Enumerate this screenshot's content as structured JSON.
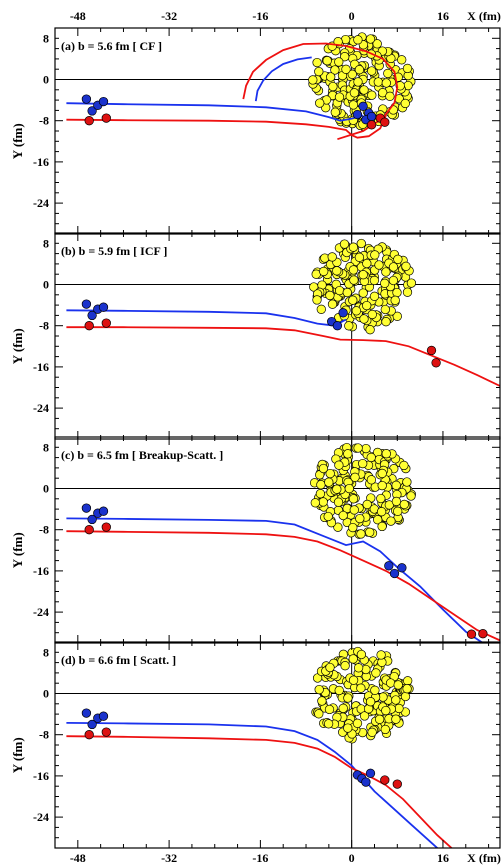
{
  "chart_data": {
    "type": "scatter",
    "xlim": [
      -52,
      26
    ],
    "ylim": [
      -30,
      10
    ],
    "x_ticks_labeled": [
      -48,
      -32,
      -16,
      0,
      16
    ],
    "x_unit_label": "X (fm)",
    "y_ticks_labeled": [
      8,
      0,
      -8,
      -16,
      -24
    ],
    "ylabel": "Y (fm)",
    "colors": {
      "target_fill": "#ffff33",
      "projectile_blue": "#1a32cc",
      "projectile_red": "#dd1111",
      "trajectory_blue": "#1a32ee",
      "trajectory_red": "#ee1111"
    },
    "panels": [
      {
        "label": "(a) b = 5.6 fm  [ CF ]",
        "blue_trajectory": {
          "x": [
            -50,
            -40,
            -25,
            -15,
            -8,
            -4,
            -2,
            0,
            2
          ],
          "y": [
            -4.6,
            -4.8,
            -5.0,
            -5.4,
            -6.2,
            -7.3,
            -8.0,
            -7.6,
            -7.0
          ]
        },
        "blue_arc": {
          "x": [
            -16.8,
            -16.5,
            -15.5,
            -14,
            -12,
            -9.5,
            -7
          ],
          "y": [
            -4.2,
            -2.2,
            -0.2,
            1.6,
            3.0,
            3.9,
            4.3
          ]
        },
        "red_trajectory": {
          "x": [
            -50,
            -40,
            -25,
            -15,
            -8,
            -4,
            -1,
            0,
            1,
            3,
            5,
            6
          ],
          "y": [
            -7.8,
            -7.9,
            -8.0,
            -8.2,
            -8.7,
            -9.2,
            -9.8,
            -10.8,
            -11.3,
            -11.0,
            -9.5,
            -7.0
          ]
        },
        "red_arc": {
          "x": [
            -19,
            -18.5,
            -17.3,
            -15,
            -12,
            -8.5,
            -4.5,
            -1,
            2.5,
            5.5,
            7.5,
            8,
            7.5,
            5.5,
            2,
            -2.5
          ],
          "y": [
            -3.8,
            -1.2,
            1.5,
            3.8,
            5.7,
            6.9,
            7.0,
            6.5,
            5.5,
            4.0,
            1.5,
            -1.5,
            -4.5,
            -7.5,
            -10.0,
            -11.6
          ]
        },
        "blue_particles": {
          "x": [
            -46.5,
            -45.5,
            -44.5,
            -43.5,
            2.0,
            3.0,
            1.0,
            2.5,
            3.5
          ],
          "y": [
            -3.8,
            -6.1,
            -5.0,
            -4.3,
            -5.2,
            -6.5,
            -6.8,
            -7.8,
            -7.2
          ]
        },
        "red_particles": {
          "x": [
            -46,
            -43,
            5.0,
            3.5,
            5.8
          ],
          "y": [
            -8.0,
            -7.5,
            -7.5,
            -8.8,
            -8.3
          ]
        },
        "target": {
          "cx": 1.8,
          "cy": -0.3,
          "r": 8.8
        }
      },
      {
        "label": "(b) b = 5.9 fm  [ ICF ]",
        "blue_trajectory": {
          "x": [
            -50,
            -40,
            -25,
            -15,
            -10,
            -6,
            -3,
            -1
          ],
          "y": [
            -5.0,
            -5.1,
            -5.3,
            -5.6,
            -6.5,
            -7.6,
            -8.0,
            -6.8
          ]
        },
        "red_trajectory": {
          "x": [
            -50,
            -40,
            -25,
            -15,
            -10,
            -5,
            -2,
            2,
            6,
            10,
            14,
            18,
            22,
            26
          ],
          "y": [
            -8.3,
            -8.3,
            -8.4,
            -8.5,
            -8.9,
            -10.0,
            -10.7,
            -10.8,
            -11.0,
            -12.0,
            -13.8,
            -15.6,
            -17.6,
            -19.7
          ]
        },
        "blue_particles": {
          "x": [
            -46.5,
            -45.5,
            -44.5,
            -43.5,
            -3.5,
            -2.5,
            -1.5
          ],
          "y": [
            -3.8,
            -6.0,
            -4.8,
            -4.4,
            -7.2,
            -8.0,
            -5.5
          ]
        },
        "red_particles": {
          "x": [
            -46,
            -43,
            14.0,
            14.8
          ],
          "y": [
            -8.0,
            -7.5,
            -12.8,
            -15.2
          ]
        },
        "target": {
          "cx": 1.8,
          "cy": -0.3,
          "r": 8.8
        }
      },
      {
        "label": "(c) b = 6.5 fm  [ Breakup-Scatt. ]",
        "blue_trajectory": {
          "x": [
            -50,
            -40,
            -25,
            -15,
            -10,
            -5,
            -1,
            2,
            5,
            8,
            12,
            16,
            20,
            23
          ],
          "y": [
            -5.8,
            -5.9,
            -6.1,
            -6.3,
            -7.0,
            -9.2,
            -11.0,
            -10.3,
            -12.2,
            -15.3,
            -19.0,
            -23.5,
            -27.8,
            -30.0
          ]
        },
        "red_trajectory": {
          "x": [
            -50,
            -40,
            -25,
            -15,
            -10,
            -6,
            -2,
            2,
            6,
            10,
            14,
            18,
            22,
            26
          ],
          "y": [
            -8.3,
            -8.4,
            -8.6,
            -8.9,
            -9.4,
            -10.3,
            -12.0,
            -14.0,
            -16.0,
            -18.5,
            -21.5,
            -24.5,
            -27.5,
            -29.5
          ]
        },
        "blue_particles": {
          "x": [
            -46.5,
            -45.5,
            -44.5,
            -43.5,
            6.5,
            7.5,
            8.8
          ],
          "y": [
            -3.8,
            -6.0,
            -4.8,
            -4.4,
            -15.0,
            -16.5,
            -15.4
          ]
        },
        "red_particles": {
          "x": [
            -46,
            -43,
            21.0,
            23.0
          ],
          "y": [
            -8.0,
            -7.5,
            -28.3,
            -28.2
          ]
        },
        "target": {
          "cx": 1.8,
          "cy": -0.3,
          "r": 8.8
        }
      },
      {
        "label": "(d) b = 6.6 fm  [ Scatt. ]",
        "blue_trajectory": {
          "x": [
            -50,
            -40,
            -25,
            -15,
            -10,
            -6,
            -3,
            0,
            2,
            4,
            7,
            10,
            13,
            16
          ],
          "y": [
            -5.7,
            -5.8,
            -6.0,
            -6.4,
            -7.3,
            -9.0,
            -11.3,
            -14.0,
            -16.5,
            -19.0,
            -22.0,
            -25.0,
            -28.0,
            -31.0
          ]
        },
        "red_trajectory": {
          "x": [
            -50,
            -40,
            -25,
            -15,
            -10,
            -6,
            -3,
            0,
            3,
            6,
            9,
            12,
            15,
            18
          ],
          "y": [
            -8.3,
            -8.4,
            -8.7,
            -9.0,
            -9.6,
            -10.7,
            -12.3,
            -14.5,
            -16.0,
            -17.8,
            -20.5,
            -24.0,
            -27.5,
            -30.5
          ]
        },
        "blue_particles": {
          "x": [
            -46.5,
            -45.5,
            -44.5,
            -43.5,
            1.0,
            1.8,
            2.5,
            3.3
          ],
          "y": [
            -3.8,
            -6.0,
            -4.8,
            -4.4,
            -15.8,
            -16.5,
            -17.2,
            -15.5
          ]
        },
        "red_particles": {
          "x": [
            -46,
            -43,
            5.8,
            8.0
          ],
          "y": [
            -8.0,
            -7.5,
            -16.8,
            -17.6
          ]
        },
        "target": {
          "cx": 1.8,
          "cy": -0.3,
          "r": 8.8
        }
      }
    ]
  }
}
